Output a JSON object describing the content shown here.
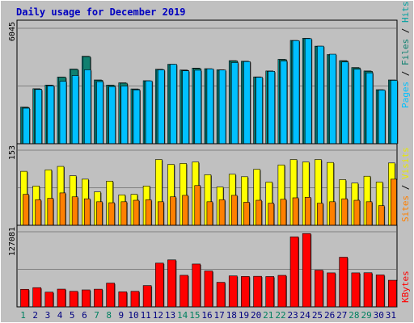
{
  "title": "Daily usage for December 2019",
  "colors": {
    "frame_bg": "#c0c0c0",
    "plot_bg": "#c0c0c0",
    "title": "#0000c0",
    "pages": "#00c0ff",
    "files": "#108070",
    "hits": "#00a0a0",
    "visits": "#ffff00",
    "sites": "#ff8000",
    "kbytes": "#ff0000",
    "weekday_label": "#108070",
    "weekend_label": "#108050"
  },
  "panels": {
    "top": {
      "ymax_label": "6045",
      "ymax": 6045,
      "side_labels": [
        "Pages",
        "Files",
        "Hits"
      ]
    },
    "middle": {
      "ymax_label": "153",
      "ymax": 153,
      "side_labels": [
        "Sites",
        "Visits"
      ]
    },
    "bottom": {
      "ymax_label": "127081",
      "ymax": 127081,
      "side_labels": [
        "KBytes"
      ]
    }
  },
  "chart_data": {
    "type": "bar",
    "title": "Daily usage for December 2019",
    "categories": [
      "1",
      "2",
      "3",
      "4",
      "5",
      "6",
      "7",
      "8",
      "9",
      "10",
      "11",
      "12",
      "13",
      "14",
      "15",
      "16",
      "17",
      "18",
      "19",
      "20",
      "21",
      "22",
      "23",
      "24",
      "25",
      "26",
      "27",
      "28",
      "29",
      "30",
      "31"
    ],
    "weekend_days": [
      "1",
      "7",
      "8",
      "14",
      "15",
      "21",
      "22",
      "28",
      "29"
    ],
    "series": [
      {
        "name": "Hits",
        "panel": "top",
        "values": [
          1920,
          2880,
          3070,
          3490,
          3910,
          4580,
          3340,
          3070,
          3190,
          2870,
          3300,
          3900,
          4160,
          3860,
          3960,
          3930,
          3870,
          4350,
          4320,
          3500,
          3810,
          4420,
          5410,
          5520,
          5110,
          4670,
          4350,
          3990,
          3810,
          2830,
          3340
        ]
      },
      {
        "name": "Files",
        "panel": "top",
        "values": [
          1900,
          2860,
          3050,
          3480,
          3890,
          4560,
          3320,
          3050,
          3170,
          2850,
          3280,
          3880,
          4140,
          3840,
          3940,
          3910,
          3850,
          4330,
          4300,
          3480,
          3790,
          4400,
          5390,
          5500,
          5090,
          4650,
          4330,
          3970,
          3790,
          2810,
          3320
        ]
      },
      {
        "name": "Pages",
        "panel": "top",
        "values": [
          1860,
          2840,
          3030,
          3270,
          3570,
          3870,
          3250,
          2990,
          3020,
          2820,
          3290,
          3870,
          4160,
          3820,
          3850,
          3920,
          3860,
          4250,
          4300,
          3480,
          3790,
          4330,
          5400,
          5500,
          5110,
          4690,
          4280,
          3900,
          3710,
          2810,
          3320
        ]
      },
      {
        "name": "Visits",
        "panel": "middle",
        "values": [
          110,
          80,
          113,
          120,
          101,
          94,
          68,
          90,
          62,
          63,
          80,
          134,
          124,
          126,
          129,
          103,
          78,
          104,
          99,
          114,
          88,
          123,
          134,
          129,
          134,
          128,
          93,
          86,
          100,
          88,
          127
        ]
      },
      {
        "name": "Sites",
        "panel": "middle",
        "values": [
          63,
          52,
          55,
          66,
          58,
          54,
          48,
          46,
          48,
          51,
          52,
          48,
          58,
          61,
          81,
          48,
          52,
          61,
          47,
          51,
          45,
          53,
          56,
          57,
          45,
          48,
          54,
          51,
          48,
          40,
          94
        ]
      },
      {
        "name": "KBytes",
        "panel": "bottom",
        "values": [
          29700,
          32500,
          24900,
          30000,
          26300,
          28700,
          29900,
          40200,
          25400,
          26300,
          36000,
          74000,
          79500,
          53400,
          72500,
          60700,
          41500,
          52400,
          51400,
          51700,
          51300,
          53300,
          118500,
          124000,
          62000,
          57500,
          84000,
          57500,
          57700,
          54000,
          45000
        ]
      }
    ]
  }
}
